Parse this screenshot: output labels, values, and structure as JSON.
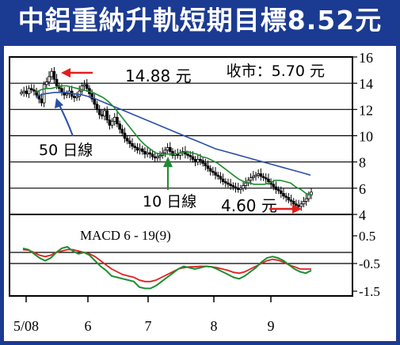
{
  "title": "中鋁重納升軌短期目標8.52元",
  "chart_data": [
    {
      "type": "candlestick",
      "title": "",
      "ylim": [
        4,
        16
      ],
      "y_ticks": [
        "16",
        "14",
        "12",
        "10",
        "8",
        "6",
        "4"
      ],
      "x_labels": [
        "5/08",
        "6",
        "7",
        "8",
        "9"
      ],
      "close_label": "收市：5.70 元",
      "annotations": [
        {
          "name": "high",
          "text": "14.88 元",
          "value": 14.88
        },
        {
          "name": "low",
          "text": "4.60 元",
          "value": 4.6
        },
        {
          "name": "ma50",
          "text": "50 日線"
        },
        {
          "name": "ma10",
          "text": "10 日線"
        }
      ],
      "series": [
        {
          "name": "price",
          "color": "#000000",
          "values": [
            13.3,
            13.4,
            13.2,
            13.6,
            13.5,
            13.4,
            13.1,
            12.8,
            12.5,
            13.9,
            14.1,
            14.5,
            14.9,
            14.3,
            13.8,
            13.6,
            13.3,
            13.1,
            13.2,
            13.4,
            13.0,
            12.9,
            13.0,
            13.4,
            13.8,
            13.9,
            13.6,
            13.2,
            12.8,
            12.4,
            12.0,
            11.6,
            11.5,
            11.9,
            11.2,
            10.8,
            11.1,
            11.4,
            10.9,
            10.5,
            10.2,
            9.8,
            9.6,
            9.4,
            9.2,
            9.1,
            8.9,
            9.0,
            8.8,
            8.6,
            8.7,
            8.6,
            8.4,
            8.3,
            8.4,
            8.5,
            8.7,
            8.9,
            9.1,
            8.8,
            8.5,
            8.6,
            8.5,
            8.7,
            8.8,
            8.6,
            8.5,
            8.4,
            8.2,
            8.0,
            8.2,
            8.1,
            7.9,
            7.7,
            7.5,
            7.3,
            7.2,
            7.0,
            6.9,
            6.7,
            6.5,
            6.4,
            6.3,
            6.2,
            6.1,
            6.0,
            5.9,
            6.0,
            6.2,
            6.4,
            6.6,
            6.8,
            6.9,
            7.0,
            7.1,
            6.9,
            6.8,
            6.7,
            6.5,
            6.3,
            6.1,
            5.9,
            5.8,
            5.6,
            5.4,
            5.3,
            5.1,
            5.0,
            4.8,
            4.7,
            4.6,
            4.8,
            5.0,
            5.2,
            5.5,
            5.7
          ]
        },
        {
          "name": "10-day MA",
          "color": "#1e8c30",
          "values": [
            13.3,
            13.5,
            13.6,
            13.6,
            13.7,
            13.8,
            13.8,
            13.7,
            13.6,
            13.5,
            13.4,
            13.3,
            13.1,
            12.9,
            12.6,
            12.2,
            11.7,
            11.2,
            10.7,
            10.2,
            9.7,
            9.3,
            9.0,
            8.7,
            8.6,
            8.6,
            8.6,
            8.6,
            8.7,
            8.8,
            8.7,
            8.6,
            8.4,
            8.3,
            8.1,
            7.9,
            7.6,
            7.3,
            7.0,
            6.7,
            6.5,
            6.4,
            6.3,
            6.3,
            6.3,
            6.4,
            6.6,
            6.6,
            6.5,
            6.4,
            6.1,
            5.9,
            5.6,
            5.5
          ]
        },
        {
          "name": "50-day MA",
          "color": "#2a4fa6",
          "values": [
            13.0,
            13.2,
            13.3,
            13.3,
            13.2,
            13.1,
            12.9,
            12.6,
            12.3,
            12.0,
            11.7,
            11.4,
            11.1,
            10.8,
            10.5,
            10.2,
            9.9,
            9.6,
            9.3,
            9.0,
            8.8,
            8.6,
            8.4,
            8.2,
            8.0,
            7.8,
            7.6,
            7.4,
            7.2,
            7.0
          ]
        }
      ]
    },
    {
      "type": "line",
      "title": "MACD 6 - 19(9)",
      "ylim": [
        -1.5,
        0.5
      ],
      "y_ticks": [
        "0.5",
        "-0.5",
        "-1.5"
      ],
      "series": [
        {
          "name": "MACD",
          "color": "#1e8c30",
          "values": [
            0.05,
            0.0,
            -0.15,
            -0.3,
            -0.4,
            -0.3,
            -0.1,
            0.05,
            0.1,
            -0.05,
            -0.15,
            -0.1,
            -0.2,
            -0.4,
            -0.6,
            -0.75,
            -0.95,
            -1.0,
            -1.05,
            -1.1,
            -1.15,
            -1.35,
            -1.4,
            -1.4,
            -1.3,
            -1.15,
            -1.0,
            -0.85,
            -0.7,
            -0.6,
            -0.65,
            -0.7,
            -0.65,
            -0.6,
            -0.62,
            -0.7,
            -0.8,
            -0.9,
            -1.0,
            -1.05,
            -0.95,
            -0.8,
            -0.65,
            -0.45,
            -0.3,
            -0.25,
            -0.3,
            -0.4,
            -0.55,
            -0.7,
            -0.8,
            -0.85,
            -0.75
          ]
        },
        {
          "name": "Signal",
          "color": "#e0201c",
          "values": [
            0.0,
            -0.02,
            -0.1,
            -0.2,
            -0.25,
            -0.2,
            -0.1,
            -0.05,
            0.0,
            0.0,
            -0.05,
            -0.1,
            -0.15,
            -0.25,
            -0.4,
            -0.55,
            -0.7,
            -0.8,
            -0.9,
            -0.95,
            -1.0,
            -1.1,
            -1.15,
            -1.15,
            -1.1,
            -1.0,
            -0.9,
            -0.8,
            -0.7,
            -0.65,
            -0.62,
            -0.62,
            -0.6,
            -0.6,
            -0.62,
            -0.65,
            -0.7,
            -0.75,
            -0.82,
            -0.85,
            -0.8,
            -0.7,
            -0.6,
            -0.5,
            -0.4,
            -0.35,
            -0.38,
            -0.45,
            -0.55,
            -0.62,
            -0.7,
            -0.7,
            -0.7
          ]
        }
      ]
    }
  ]
}
